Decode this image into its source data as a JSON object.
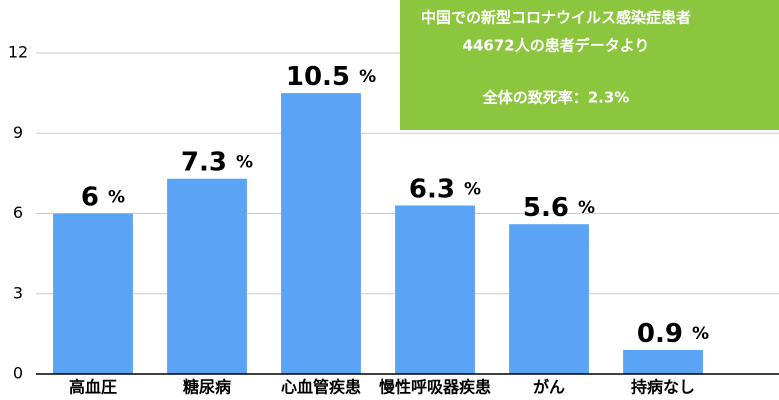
{
  "chart_data": {
    "type": "bar",
    "categories": [
      "高血圧",
      "糖尿病",
      "心血管疾患",
      "慢性呼吸器疾患",
      "がん",
      "持病なし"
    ],
    "values": [
      6,
      7.3,
      10.5,
      6.3,
      5.6,
      0.9
    ],
    "value_labels": [
      "6 %",
      "7.3 %",
      "10.5 %",
      "6.3 %",
      "5.6 %",
      "0.9 %"
    ],
    "color": "#5ba3f5",
    "ylim": [
      0,
      12
    ],
    "yticks": [
      0,
      3,
      6,
      9,
      12
    ],
    "grid": true,
    "annotations": [
      "中国での新型コロナウイルス感染症患者",
      "44672人の患者データより",
      "全体の致死率：2.3%"
    ],
    "annotation_color": "#8cc63f"
  }
}
